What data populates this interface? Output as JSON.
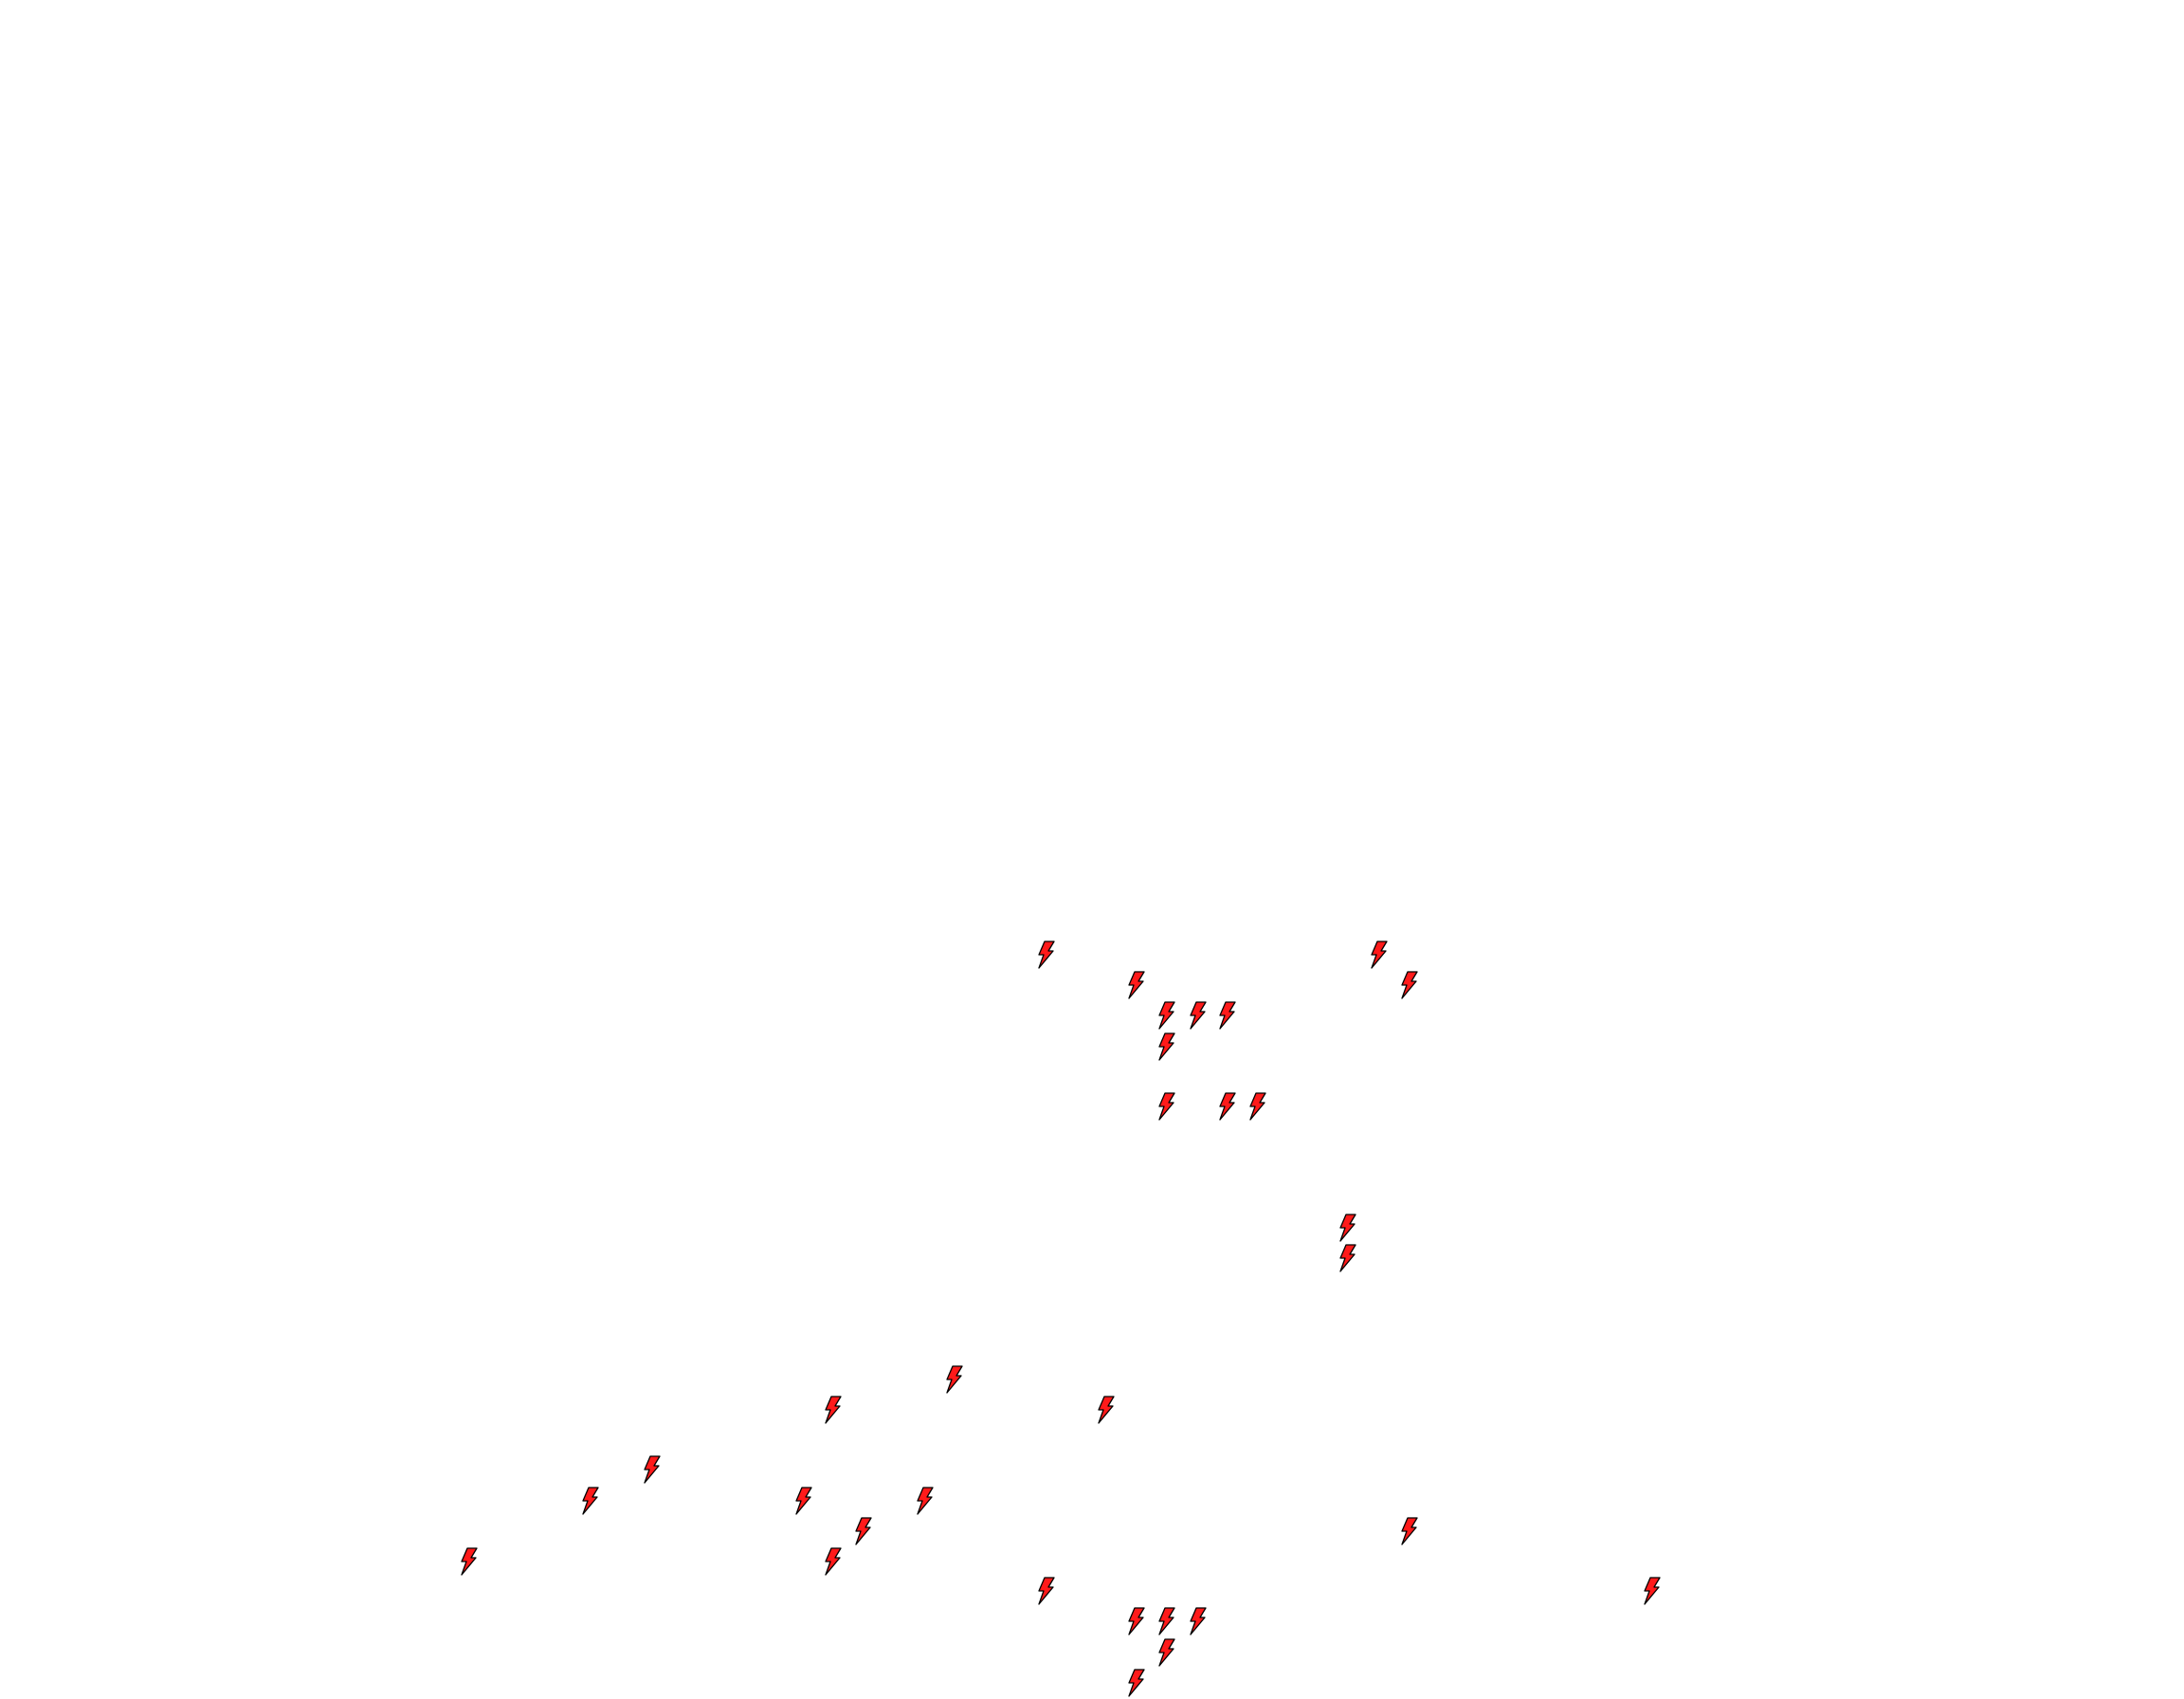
{
  "map": {
    "background": "#ffffff",
    "marker_icon": "lightning-bolt-icon",
    "marker_fill": "#ff1a1a",
    "marker_stroke": "#000000"
  }
}
